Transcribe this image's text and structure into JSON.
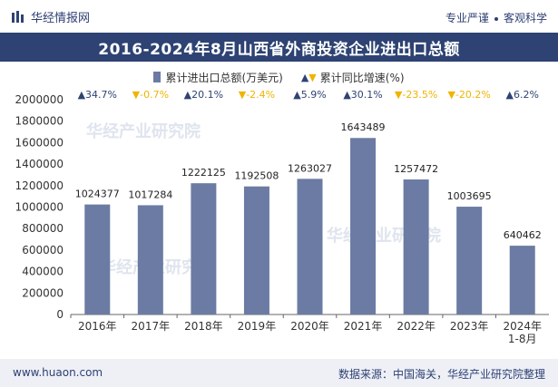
{
  "header": {
    "brand": "华经情报网",
    "tagline_left": "专业严谨",
    "tagline_right": "客观科学"
  },
  "chart_data": {
    "type": "bar",
    "title": "2016-2024年8月山西省外商投资企业进出口总额",
    "categories": [
      "2016年",
      "2017年",
      "2018年",
      "2019年",
      "2020年",
      "2021年",
      "2022年",
      "2023年",
      "2024年\n1-8月"
    ],
    "series": [
      {
        "name": "累计进出口总额(万美元)",
        "values": [
          1024377,
          1017284,
          1222125,
          1192508,
          1263027,
          1643489,
          1257472,
          1003695,
          640462
        ],
        "color": "#6b7ba3"
      }
    ],
    "growth": {
      "name": "累计同比增速(%)",
      "labels": [
        "▲34.7%",
        "▼-0.7%",
        "▲20.1%",
        "▼-2.4%",
        "▲5.9%",
        "▲30.1%",
        "▼-23.5%",
        "▼-20.2%",
        "▲6.2%"
      ],
      "up_color": "#2e4373",
      "down_color": "#f0b400"
    },
    "ylim": [
      0,
      2000000
    ],
    "yticks": [
      "0",
      "200000",
      "400000",
      "600000",
      "800000",
      "1000000",
      "1200000",
      "1400000",
      "1600000",
      "1800000",
      "2000000"
    ],
    "grid": false,
    "legend_position": "top-center"
  },
  "footer": {
    "website": "www.huaon.com",
    "source": "数据来源：中国海关，华经产业研究院整理"
  }
}
